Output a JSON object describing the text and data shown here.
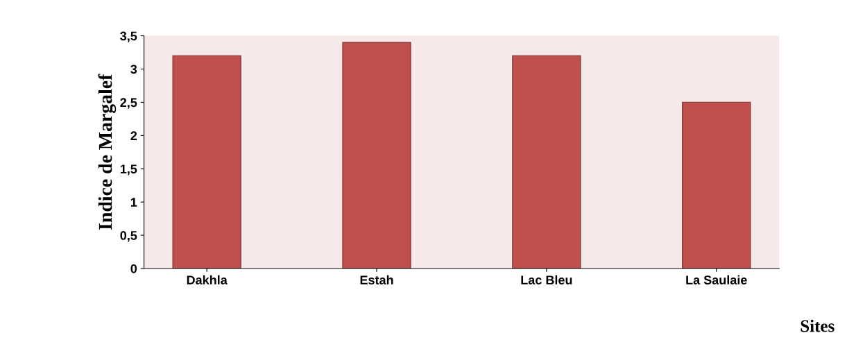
{
  "chart_data": {
    "type": "bar",
    "xlabel": "Sites",
    "ylabel": "Indice de Margalef",
    "categories": [
      "Dakhla",
      "Estah",
      "Lac Bleu",
      "La Saulaie"
    ],
    "values": [
      3.2,
      3.4,
      3.2,
      2.5
    ],
    "color": "#c0504d",
    "ylim": [
      0,
      3.5
    ],
    "yticks": [
      {
        "value": 0,
        "label": "0"
      },
      {
        "value": 0.5,
        "label": "0,5"
      },
      {
        "value": 1,
        "label": "1"
      },
      {
        "value": 1.5,
        "label": "1,5"
      },
      {
        "value": 2,
        "label": "2"
      },
      {
        "value": 2.5,
        "label": "2,5"
      },
      {
        "value": 3,
        "label": "3"
      },
      {
        "value": 3.5,
        "label": "3,5"
      }
    ],
    "grid": false,
    "legend": false
  }
}
